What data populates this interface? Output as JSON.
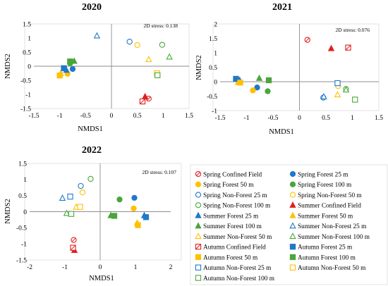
{
  "colors": {
    "spring": "#1f78c8",
    "spring_forest50": "#ffc000",
    "green": "#4aa63a",
    "red": "#e0201e",
    "orange_forest": "#ffc000",
    "text": "#000000"
  },
  "groups": [
    {
      "key": "sprCF",
      "label": "Spring Confined Field",
      "shape": "circle",
      "fill": false,
      "color": "#e0201e",
      "cross": true
    },
    {
      "key": "sprF25",
      "label": "Spring Forest 25 m",
      "shape": "circle",
      "fill": true,
      "color": "#1f78c8"
    },
    {
      "key": "sprF50",
      "label": "Spring Forest 50 m",
      "shape": "circle",
      "fill": true,
      "color": "#ffc000"
    },
    {
      "key": "sprF100",
      "label": "Spring Forest 100 m",
      "shape": "circle",
      "fill": true,
      "color": "#4aa63a"
    },
    {
      "key": "sprN25",
      "label": "Spring Non-Forest 25 m",
      "shape": "circle",
      "fill": false,
      "color": "#1f78c8"
    },
    {
      "key": "sprN50",
      "label": "Spring Non-Forest 50 m",
      "shape": "circle",
      "fill": false,
      "color": "#ffc000"
    },
    {
      "key": "sprN100",
      "label": "Spring Non-Forest 100 m",
      "shape": "circle",
      "fill": false,
      "color": "#4aa63a"
    },
    {
      "key": "sumCF",
      "label": "Summer Confined Field",
      "shape": "triangle",
      "fill": true,
      "color": "#e0201e"
    },
    {
      "key": "sumF25",
      "label": "Summer Forest 25 m",
      "shape": "triangle",
      "fill": true,
      "color": "#1f78c8"
    },
    {
      "key": "sumF50",
      "label": "Summer Forest 50 m",
      "shape": "triangle",
      "fill": true,
      "color": "#ffc000"
    },
    {
      "key": "sumF100",
      "label": "Summer Forest 100 m",
      "shape": "triangle",
      "fill": true,
      "color": "#4aa63a"
    },
    {
      "key": "sumN25",
      "label": "Summer Non-Forest 25 m",
      "shape": "triangle",
      "fill": false,
      "color": "#1f78c8"
    },
    {
      "key": "sumN50",
      "label": "Summer Non-Forest 50 m",
      "shape": "triangle",
      "fill": false,
      "color": "#ffc000"
    },
    {
      "key": "sumN100",
      "label": "Summer Non-Forest 100 m",
      "shape": "triangle",
      "fill": false,
      "color": "#4aa63a"
    },
    {
      "key": "autCF",
      "label": "Autumn Confined Field",
      "shape": "square",
      "fill": false,
      "color": "#e0201e",
      "cross": true
    },
    {
      "key": "autF25",
      "label": "Autumn Forest 25 m",
      "shape": "square",
      "fill": true,
      "color": "#1f78c8"
    },
    {
      "key": "autF50",
      "label": "Autumn Forest 50 m",
      "shape": "square",
      "fill": true,
      "color": "#ffc000"
    },
    {
      "key": "autF100",
      "label": "Autumn Forest 100 m",
      "shape": "square",
      "fill": true,
      "color": "#4aa63a"
    },
    {
      "key": "autN25",
      "label": "Autumn Non-Forest 25 m",
      "shape": "square",
      "fill": false,
      "color": "#1f78c8"
    },
    {
      "key": "autN50",
      "label": "Autumn Non-Forest 50 m",
      "shape": "square",
      "fill": false,
      "color": "#ffc000"
    },
    {
      "key": "autN100",
      "label": "Autumn Non-Forest 100 m",
      "shape": "square",
      "fill": false,
      "color": "#4aa63a"
    }
  ],
  "chart_data": [
    {
      "type": "scatter",
      "title": "2020",
      "stress_label": "2D stress: 0.138",
      "xlabel": "NMDS1",
      "ylabel": "NMDS2",
      "xlim": [
        -1.5,
        1.5
      ],
      "ylim": [
        -1.5,
        1.5
      ],
      "xticks": [
        -1.5,
        -1,
        -0.5,
        0,
        0.5,
        1,
        1.5
      ],
      "yticks": [
        -1.5,
        -1,
        -0.5,
        0,
        0.5,
        1,
        1.5
      ],
      "xtick_labels": [
        "-1.5",
        "-1",
        "-0.5",
        "0",
        "0.5",
        "1",
        "1.5"
      ],
      "ytick_labels": [
        "-1.5",
        "-1",
        "-0.5",
        "0",
        "0.5",
        "1",
        "1.5"
      ],
      "points": [
        {
          "g": "sprCF",
          "x": 0.72,
          "y": -1.15
        },
        {
          "g": "sumCF",
          "x": 0.65,
          "y": -1.08
        },
        {
          "g": "autCF",
          "x": 0.6,
          "y": -1.25
        },
        {
          "g": "sprF25",
          "x": -0.75,
          "y": -0.1
        },
        {
          "g": "sprF50",
          "x": -0.85,
          "y": -0.27
        },
        {
          "g": "sprF100",
          "x": -0.8,
          "y": 0.1
        },
        {
          "g": "sprN25",
          "x": 0.35,
          "y": 0.87
        },
        {
          "g": "sprN50",
          "x": 0.5,
          "y": 0.75
        },
        {
          "g": "sprN100",
          "x": 0.98,
          "y": 0.76
        },
        {
          "g": "sumF25",
          "x": -0.87,
          "y": -0.14
        },
        {
          "g": "sumF50",
          "x": -0.98,
          "y": -0.25
        },
        {
          "g": "sumF100",
          "x": -0.72,
          "y": 0.18
        },
        {
          "g": "sumN25",
          "x": -0.28,
          "y": 1.08
        },
        {
          "g": "sumN50",
          "x": 0.72,
          "y": 0.24
        },
        {
          "g": "sumN100",
          "x": 1.12,
          "y": 0.33
        },
        {
          "g": "autF25",
          "x": -0.92,
          "y": -0.07
        },
        {
          "g": "autF50",
          "x": -1.0,
          "y": -0.33
        },
        {
          "g": "autF100",
          "x": -0.8,
          "y": 0.17
        },
        {
          "g": "autN50",
          "x": 0.88,
          "y": -0.25
        },
        {
          "g": "autN100",
          "x": 0.89,
          "y": -0.32
        }
      ]
    },
    {
      "type": "scatter",
      "title": "2021",
      "stress_label": "2D stress: 0.076",
      "xlabel": "NMDS1",
      "ylabel": "NMDS2",
      "xlim": [
        -1.5,
        1.5
      ],
      "ylim": [
        -1,
        2
      ],
      "xticks": [
        -1.5,
        -1,
        -0.5,
        0,
        0.5,
        1,
        1.5
      ],
      "yticks": [
        -1,
        -0.5,
        0,
        0.5,
        1,
        1.5,
        2
      ],
      "xtick_labels": [
        "-1.5",
        "-1",
        "-0.5",
        "0",
        "0.5",
        "1",
        "1.5"
      ],
      "ytick_labels": [
        "-1",
        "-0.5",
        "0",
        "0.5",
        "1",
        "1.5",
        "2"
      ],
      "points": [
        {
          "g": "sprCF",
          "x": 0.15,
          "y": 1.45
        },
        {
          "g": "sumCF",
          "x": 0.6,
          "y": 1.15
        },
        {
          "g": "autCF",
          "x": 0.92,
          "y": 1.18
        },
        {
          "g": "sprF25",
          "x": -0.8,
          "y": -0.2
        },
        {
          "g": "sprF50",
          "x": -0.88,
          "y": -0.3
        },
        {
          "g": "sprF100",
          "x": -0.6,
          "y": -0.33
        },
        {
          "g": "sprN25",
          "x": 0.45,
          "y": -0.55
        },
        {
          "g": "sprN50",
          "x": 0.73,
          "y": -0.15
        },
        {
          "g": "sprN100",
          "x": 0.88,
          "y": -0.25
        },
        {
          "g": "sumF25",
          "x": -1.13,
          "y": 0.05
        },
        {
          "g": "sumF50",
          "x": -1.16,
          "y": -0.02
        },
        {
          "g": "sumF100",
          "x": -0.76,
          "y": 0.12
        },
        {
          "g": "sumN25",
          "x": 0.46,
          "y": -0.52
        },
        {
          "g": "sumN50",
          "x": 0.72,
          "y": -0.45
        },
        {
          "g": "sumN100",
          "x": 0.88,
          "y": -0.28
        },
        {
          "g": "autF25",
          "x": -1.2,
          "y": 0.1
        },
        {
          "g": "autF50",
          "x": -1.12,
          "y": -0.03
        },
        {
          "g": "autF100",
          "x": -0.58,
          "y": 0.05
        },
        {
          "g": "autN25",
          "x": 0.72,
          "y": -0.05
        },
        {
          "g": "autN100",
          "x": 1.05,
          "y": -0.62
        }
      ]
    },
    {
      "type": "scatter",
      "title": "2022",
      "stress_label": "2D stress: 0.107",
      "xlabel": "NMDS1",
      "ylabel": "NMDS2",
      "xlim": [
        -2,
        2
      ],
      "ylim": [
        -1.5,
        1.5
      ],
      "xticks": [
        -2,
        -1,
        0,
        1,
        2
      ],
      "yticks": [
        -1.5,
        -1,
        -0.5,
        0,
        0.5,
        1,
        1.5
      ],
      "xtick_labels": [
        "-2",
        "-1",
        "0",
        "1",
        "2"
      ],
      "ytick_labels": [
        "-1.5",
        "-1",
        "-0.5",
        "0",
        "0.5",
        "1",
        "1.5"
      ],
      "points": [
        {
          "g": "sprCF",
          "x": -0.75,
          "y": -0.88
        },
        {
          "g": "sumCF",
          "x": -0.73,
          "y": -1.2
        },
        {
          "g": "autCF",
          "x": -0.77,
          "y": -1.12
        },
        {
          "g": "sprF25",
          "x": 0.97,
          "y": 0.43
        },
        {
          "g": "sprF50",
          "x": 0.95,
          "y": 0.1
        },
        {
          "g": "sprF100",
          "x": 0.55,
          "y": 0.38
        },
        {
          "g": "sprN25",
          "x": -0.55,
          "y": 0.8
        },
        {
          "g": "sprN50",
          "x": -0.5,
          "y": 0.6
        },
        {
          "g": "sprN100",
          "x": -0.27,
          "y": 1.02
        },
        {
          "g": "sumF25",
          "x": 1.25,
          "y": -0.12
        },
        {
          "g": "sumF50",
          "x": 1.05,
          "y": -0.35
        },
        {
          "g": "sumF100",
          "x": 0.3,
          "y": -0.12
        },
        {
          "g": "sumN25",
          "x": -1.07,
          "y": 0.42
        },
        {
          "g": "sumN50",
          "x": -0.68,
          "y": 0.14
        },
        {
          "g": "sumN100",
          "x": -0.95,
          "y": -0.05
        },
        {
          "g": "autF25",
          "x": 1.3,
          "y": -0.17
        },
        {
          "g": "autF50",
          "x": 1.07,
          "y": -0.42
        },
        {
          "g": "autF100",
          "x": 0.4,
          "y": -0.13
        },
        {
          "g": "autN25",
          "x": -0.85,
          "y": 0.47
        },
        {
          "g": "autN50",
          "x": -0.57,
          "y": 0.15
        },
        {
          "g": "autN100",
          "x": -0.82,
          "y": -0.07
        }
      ]
    }
  ]
}
